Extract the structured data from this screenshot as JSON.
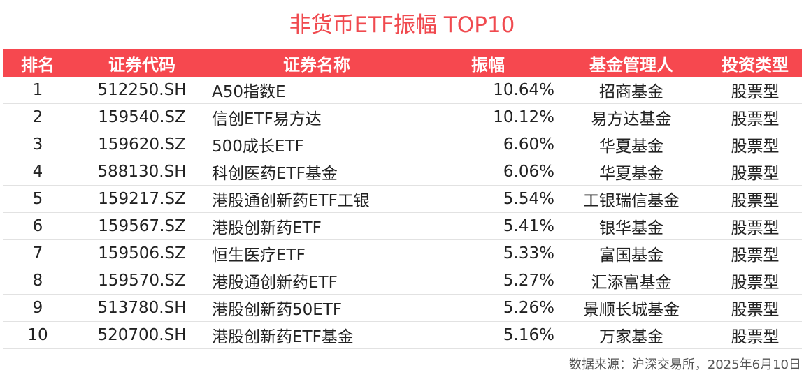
{
  "title": "非货币ETF振幅 TOP10",
  "colors": {
    "title": "#f04a4f",
    "header_background": "#f6484f",
    "header_text": "#ffffff"
  },
  "chart_data": {
    "type": "table",
    "title": "非货币ETF振幅 TOP10",
    "columns": [
      "排名",
      "证券代码",
      "证券名称",
      "振幅",
      "基金管理人",
      "投资类型"
    ],
    "rows": [
      [
        "1",
        "512250.SH",
        "A50指数E",
        "10.64%",
        "招商基金",
        "股票型"
      ],
      [
        "2",
        "159540.SZ",
        "信创ETF易方达",
        "10.12%",
        "易方达基金",
        "股票型"
      ],
      [
        "3",
        "159620.SZ",
        "500成长ETF",
        "6.60%",
        "华夏基金",
        "股票型"
      ],
      [
        "4",
        "588130.SH",
        "科创医药ETF基金",
        "6.06%",
        "华夏基金",
        "股票型"
      ],
      [
        "5",
        "159217.SZ",
        "港股通创新药ETF工银",
        "5.54%",
        "工银瑞信基金",
        "股票型"
      ],
      [
        "6",
        "159567.SZ",
        "港股创新药ETF",
        "5.41%",
        "银华基金",
        "股票型"
      ],
      [
        "7",
        "159506.SZ",
        "恒生医疗ETF",
        "5.33%",
        "富国基金",
        "股票型"
      ],
      [
        "8",
        "159570.SZ",
        "港股通创新药ETF",
        "5.27%",
        "汇添富基金",
        "股票型"
      ],
      [
        "9",
        "513780.SH",
        "港股创新药50ETF",
        "5.26%",
        "景顺长城基金",
        "股票型"
      ],
      [
        "10",
        "520700.SH",
        "港股创新药ETF基金",
        "5.16%",
        "万家基金",
        "股票型"
      ]
    ]
  },
  "source": "数据来源：沪深交易所，2025年6月10日"
}
